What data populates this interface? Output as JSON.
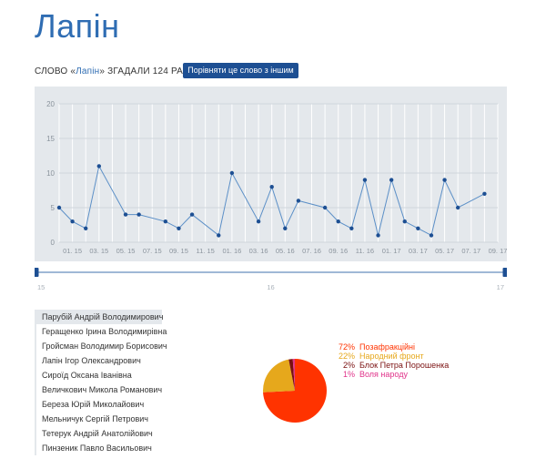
{
  "header": {
    "title": "Лапін",
    "mention_prefix": "СЛОВО «",
    "mention_word": "Лапін",
    "mention_suffix": "» ЗГАДАЛИ 124 РАЗ",
    "compare_button": "Порівняти це слово з іншим"
  },
  "colors": {
    "accent": "#2f6db3",
    "button": "#1d4f93",
    "chart_bg": "#e4e8ec",
    "line": "#5b8fc7"
  },
  "chart_data": {
    "type": "line",
    "ylim": [
      0,
      20
    ],
    "yticks": [
      "0",
      "5",
      "10",
      "15",
      "20"
    ],
    "x_labels": [
      "01. 15",
      "03. 15",
      "05. 15",
      "07. 15",
      "09. 15",
      "11. 15",
      "01. 16",
      "03. 16",
      "05. 16",
      "07. 16",
      "09. 16",
      "11. 16",
      "01. 17",
      "03. 17",
      "05. 17",
      "07. 17",
      "09. 17"
    ],
    "x_label_index": [
      1,
      3,
      5,
      7,
      9,
      11,
      13,
      15,
      17,
      19,
      21,
      23,
      25,
      27,
      29,
      31,
      33
    ],
    "period_count": 34,
    "points": [
      {
        "i": 0,
        "v": 5
      },
      {
        "i": 1,
        "v": 3
      },
      {
        "i": 2,
        "v": 2
      },
      {
        "i": 3,
        "v": 11
      },
      {
        "i": 5,
        "v": 4
      },
      {
        "i": 6,
        "v": 4
      },
      {
        "i": 8,
        "v": 3
      },
      {
        "i": 9,
        "v": 2
      },
      {
        "i": 10,
        "v": 4
      },
      {
        "i": 12,
        "v": 1
      },
      {
        "i": 13,
        "v": 10
      },
      {
        "i": 15,
        "v": 3
      },
      {
        "i": 16,
        "v": 8
      },
      {
        "i": 17,
        "v": 2
      },
      {
        "i": 18,
        "v": 6
      },
      {
        "i": 20,
        "v": 5
      },
      {
        "i": 21,
        "v": 3
      },
      {
        "i": 22,
        "v": 2
      },
      {
        "i": 23,
        "v": 9
      },
      {
        "i": 24,
        "v": 1
      },
      {
        "i": 25,
        "v": 9
      },
      {
        "i": 26,
        "v": 3
      },
      {
        "i": 27,
        "v": 2
      },
      {
        "i": 28,
        "v": 1
      },
      {
        "i": 29,
        "v": 9
      },
      {
        "i": 30,
        "v": 5
      },
      {
        "i": 32,
        "v": 7
      }
    ]
  },
  "slider": {
    "labels": [
      "15",
      "16",
      "17"
    ],
    "range": [
      0,
      1
    ]
  },
  "members": [
    "Парубій Андрій Володимирович",
    "Геращенко Ірина Володимирівна",
    "Гройсман Володимир Борисович",
    "Лапін Ігор Олександрович",
    "Сироїд Оксана Іванівна",
    "Величкович Микола Романович",
    "Береза Юрій Миколайович",
    "Мельничук Сергій Петрович",
    "Тетерук Андрій Анатолійович",
    "Пинзеник Павло Васильович"
  ],
  "pie_data": {
    "type": "pie",
    "slices": [
      {
        "label": "Позафракційні",
        "pct_text": "72%",
        "value": 72,
        "color": "#ff3300"
      },
      {
        "label": "Народний фронт",
        "pct_text": "22%",
        "value": 22,
        "color": "#e6a81c"
      },
      {
        "label": "Блок Петра Порошенка",
        "pct_text": "2%",
        "value": 2,
        "color": "#7a1010"
      },
      {
        "label": "Воля народу",
        "pct_text": "1%",
        "value": 1,
        "color": "#e0338a"
      }
    ]
  }
}
